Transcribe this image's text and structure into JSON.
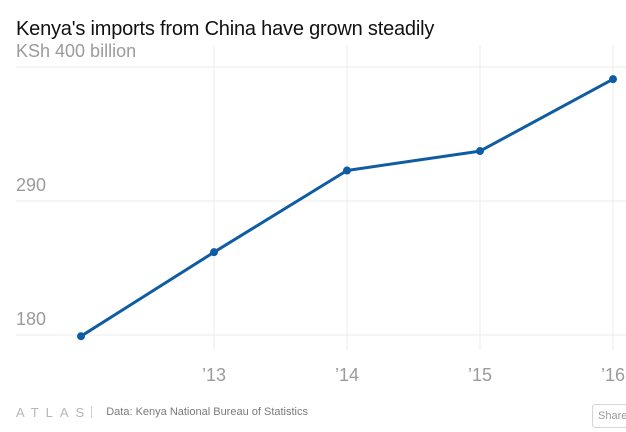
{
  "title": "Kenya's imports from China have grown steadily",
  "chart_data": {
    "type": "line",
    "title": "Kenya's imports from China have grown steadily",
    "xlabel": "",
    "ylabel": "",
    "x": [
      2012,
      2013,
      2014,
      2015,
      2016
    ],
    "x_tick_values": [
      2013,
      2014,
      2015,
      2016
    ],
    "x_tick_labels": [
      "’13",
      "’14",
      "’15",
      "’16"
    ],
    "y_tick_values": [
      180,
      290,
      400
    ],
    "y_tick_labels": [
      "180",
      "290",
      "KSh 400 billion"
    ],
    "ylim": [
      180,
      400
    ],
    "grid": true,
    "series": [
      {
        "values": [
          179,
          248,
          315,
          331,
          390
        ],
        "color": "#0f5ca2"
      }
    ]
  },
  "footer": {
    "logo": "ATLAS",
    "source": "Data:  Kenya National Bureau of Statistics",
    "share_label": "Share"
  }
}
